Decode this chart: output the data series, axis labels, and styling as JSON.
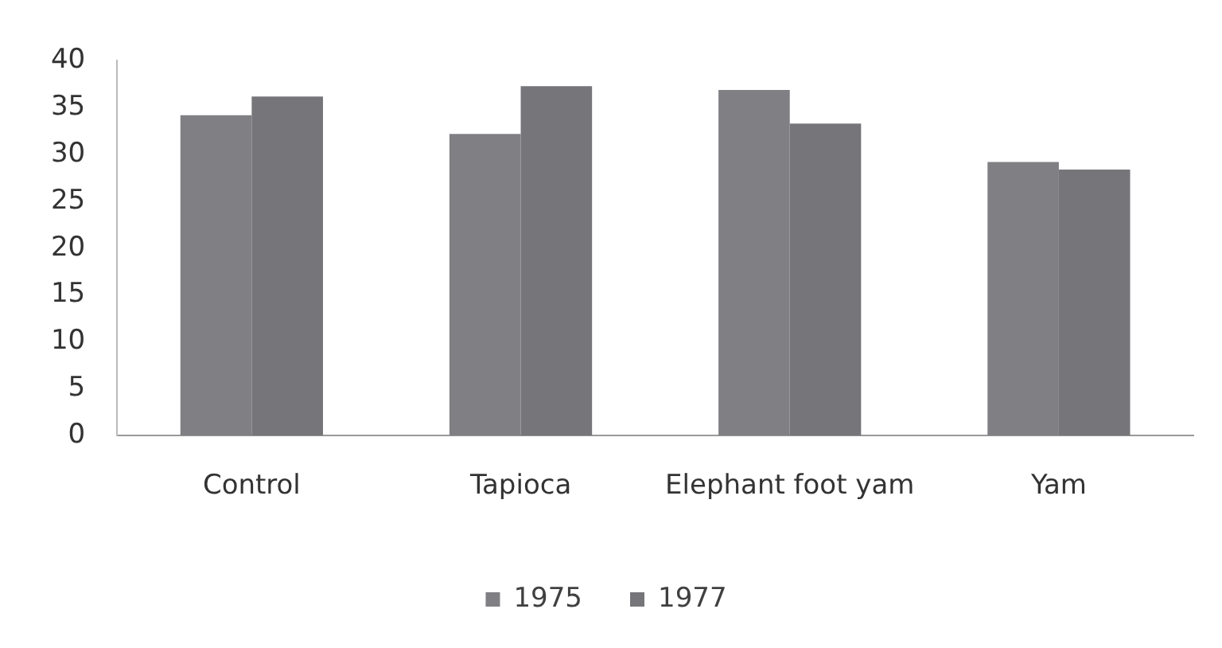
{
  "chart_data": {
    "type": "bar",
    "categories": [
      "Control",
      "Tapioca",
      "Elephant foot yam",
      "Yam"
    ],
    "series": [
      {
        "name": "1975",
        "color": "#7f7f84",
        "values": [
          34.2,
          32.2,
          36.9,
          29.2
        ]
      },
      {
        "name": "1977",
        "color": "#76767a",
        "values": [
          36.2,
          37.3,
          33.3,
          28.4
        ]
      }
    ],
    "ylim": [
      0,
      40
    ],
    "yticks": [
      0,
      5,
      10,
      15,
      20,
      25,
      30,
      35,
      40
    ],
    "grid": false,
    "legend": "bottom"
  }
}
